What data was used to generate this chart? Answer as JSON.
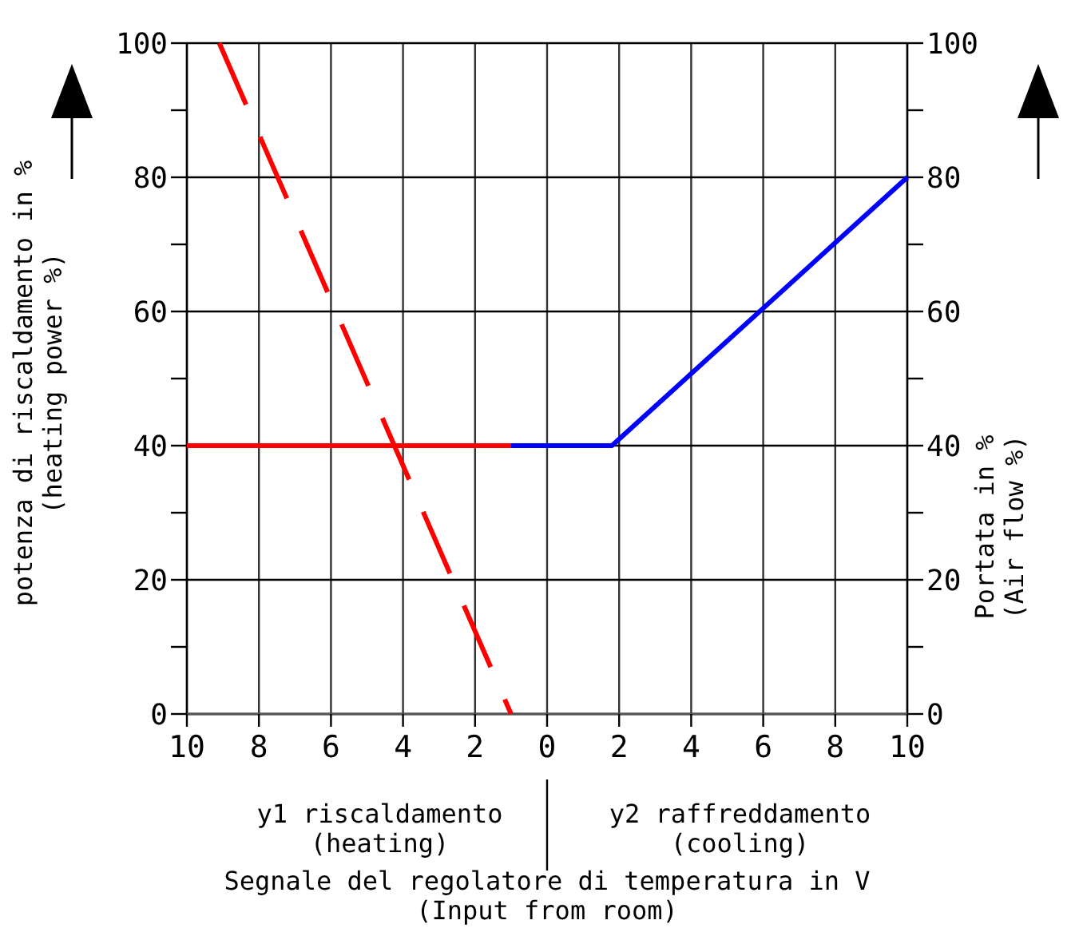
{
  "chart_data": {
    "type": "line",
    "ylabel": "potenza di riscaldamento in %\n(heating power %)",
    "y2label": "Portata in %\n(Air flow %)",
    "xlabel": "Segnale del regolatore di temperatura in V\n(Input from room)",
    "annotations": [
      "y1 riscaldamento\n(heating)",
      "y2 raffreddamento\n(cooling)"
    ],
    "xlim": [
      -10,
      10
    ],
    "xticks": [
      {
        "value": -10,
        "label": "10"
      },
      {
        "value": -8,
        "label": "8"
      },
      {
        "value": -6,
        "label": "6"
      },
      {
        "value": -4,
        "label": "4"
      },
      {
        "value": -2,
        "label": "2"
      },
      0,
      2,
      4,
      6,
      8,
      10
    ],
    "ylim": [
      0,
      100
    ],
    "yticks": [
      0,
      {
        "value": 10,
        "label": null
      },
      20,
      {
        "value": 30,
        "label": null
      },
      40,
      {
        "value": 50,
        "label": null
      },
      60,
      {
        "value": 70,
        "label": null
      },
      80,
      {
        "value": 90,
        "label": null
      },
      100
    ],
    "y2lim": [
      0,
      100
    ],
    "y2ticks": [
      0,
      {
        "value": 10,
        "label": null
      },
      20,
      {
        "value": 30,
        "label": null
      },
      40,
      {
        "value": 50,
        "label": null
      },
      60,
      {
        "value": 70,
        "label": null
      },
      80,
      {
        "value": 90,
        "label": null
      },
      100
    ],
    "grid": true,
    "marker": "none",
    "series": [
      {
        "color": "#ff0000",
        "x": [
          -10,
          -1
        ],
        "values": [
          40,
          40
        ],
        "line_style": "solid"
      },
      {
        "color": "#ff0000",
        "x": [
          -9.1,
          -1
        ],
        "values": [
          100,
          0
        ],
        "line_style": "dashed"
      },
      {
        "color": "#0000ff",
        "x": [
          -1,
          1.8,
          10
        ],
        "values": [
          40,
          40,
          80
        ],
        "line_style": "solid",
        "axis": "y2"
      }
    ]
  }
}
